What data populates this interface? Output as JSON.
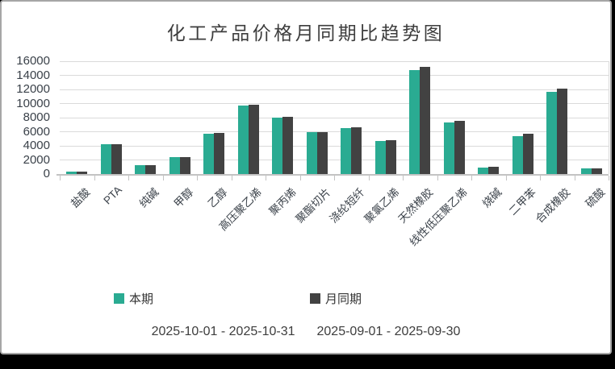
{
  "chart_data": {
    "type": "bar",
    "title": "化工产品价格月同期比趋势图",
    "categories": [
      "盐酸",
      "PTA",
      "纯碱",
      "甲醇",
      "乙醇",
      "高压聚乙烯",
      "聚丙烯",
      "聚酯切片",
      "涤纶短纤",
      "聚氯乙烯",
      "天然橡胶",
      "线性低压聚乙烯",
      "烧碱",
      "二甲苯",
      "合成橡胶",
      "硫酸"
    ],
    "series": [
      {
        "name": "本期",
        "color": "#2AAB92",
        "values": [
          400,
          4200,
          1300,
          2400,
          5700,
          9700,
          8000,
          5900,
          6500,
          4700,
          14800,
          7300,
          900,
          5400,
          11700,
          800
        ]
      },
      {
        "name": "月同期",
        "color": "#424242",
        "values": [
          350,
          4200,
          1300,
          2400,
          5800,
          9850,
          8100,
          6000,
          6600,
          4800,
          15200,
          7500,
          1000,
          5700,
          12100,
          850
        ]
      }
    ],
    "xlabel": "",
    "ylabel": "",
    "ylim": [
      0,
      16000
    ],
    "ytick_step": 2000,
    "yticks": [
      0,
      2000,
      4000,
      6000,
      8000,
      10000,
      12000,
      14000,
      16000
    ],
    "grid": true,
    "legend_position": "bottom"
  },
  "legend": {
    "items": [
      {
        "label": "本期",
        "color": "#2AAB92"
      },
      {
        "label": "月同期",
        "color": "#424242"
      }
    ]
  },
  "dates": {
    "current_period": "2025-10-01 - 2025-10-31",
    "previous_period": "2025-09-01 - 2025-09-30"
  },
  "colors": {
    "grid": "#DADADA",
    "axis": "#C3C3C3",
    "axis_text": "#3A4149",
    "title_text": "#3D3D3D",
    "panel_border": "#A6A6A6",
    "bottom_strip": "#000000"
  }
}
